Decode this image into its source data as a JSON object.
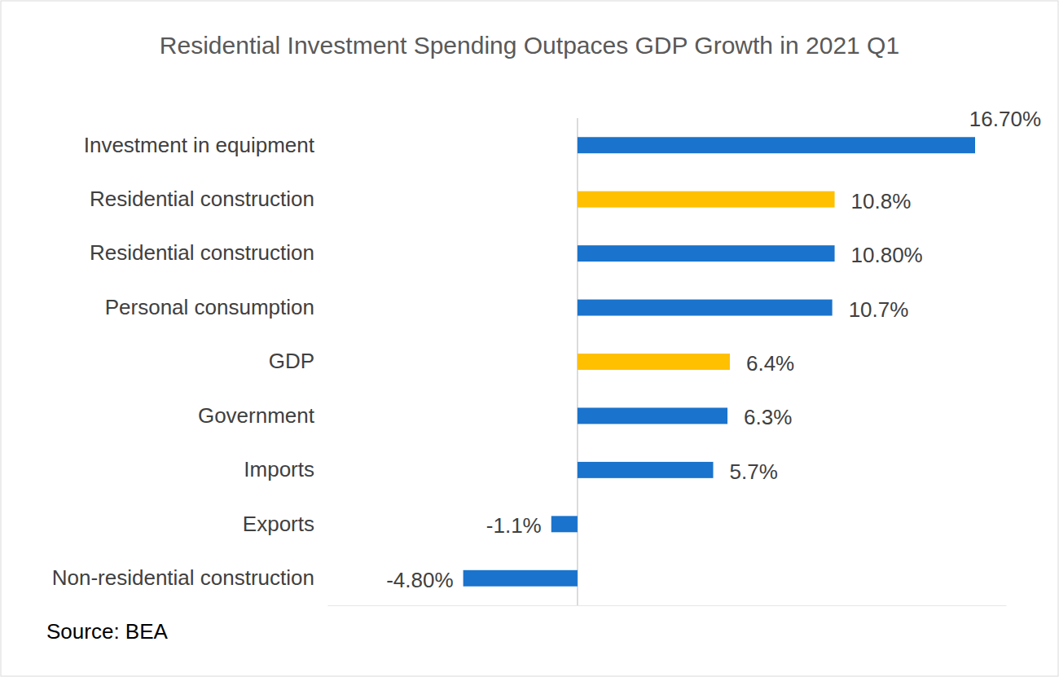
{
  "chart_data": {
    "type": "bar",
    "orientation": "horizontal",
    "title": "Residential Investment Spending Outpaces GDP Growth in 2021 Q1",
    "source": "Source: BEA",
    "categories": [
      "Investment in equipment",
      "Residential construction",
      "Residential construction",
      "Personal consumption",
      "GDP",
      "Government ",
      "Imports",
      "Exports",
      "Non-residential construction"
    ],
    "values": [
      16.7,
      10.8,
      10.8,
      10.7,
      6.4,
      6.3,
      5.7,
      -1.1,
      -4.8
    ],
    "value_labels": [
      "16.70%",
      "10.8%",
      "10.80%",
      "10.7%",
      "6.4%",
      "6.3%",
      "5.7%",
      "-1.1%",
      "-4.80%"
    ],
    "colors": [
      "#1a73cc",
      "#ffc000",
      "#1a73cc",
      "#1a73cc",
      "#ffc000",
      "#1a73cc",
      "#1a73cc",
      "#1a73cc",
      "#1a73cc"
    ],
    "xlim": [
      -10.5,
      18
    ],
    "xticks": [
      0
    ],
    "grid": true,
    "data_labels": true,
    "tick_labels": "y"
  }
}
